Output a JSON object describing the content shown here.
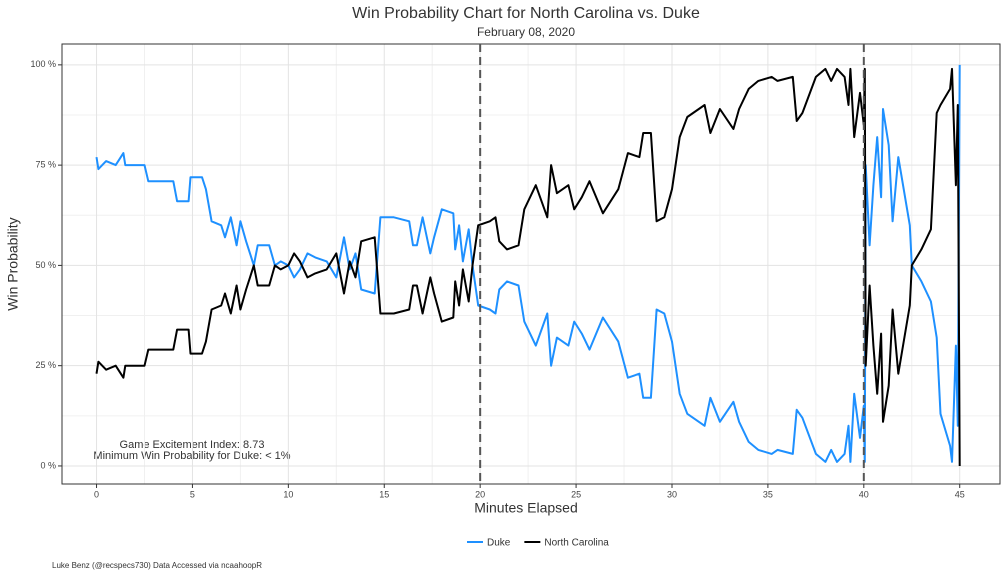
{
  "chart_data": {
    "type": "line",
    "title": "Win Probability Chart for North Carolina vs. Duke",
    "subtitle": "February 08, 2020",
    "x_label": "Minutes Elapsed",
    "y_label": "Win Probability",
    "annotations": [
      "Game Excitement Index: 8.73",
      "Minimum Win Probability for Duke: < 1%"
    ],
    "caption": "Luke Benz (@recspecs730) Data Accessed via ncaahoopR",
    "xlim": [
      -1.8,
      47.1
    ],
    "ylim": [
      -4.5,
      105.2
    ],
    "xticks": [
      0,
      5,
      10,
      15,
      20,
      25,
      30,
      35,
      40,
      45
    ],
    "yticks": [
      {
        "value": 0,
        "label": "0 %"
      },
      {
        "value": 25,
        "label": "25 %"
      },
      {
        "value": 50,
        "label": "50 %"
      },
      {
        "value": 75,
        "label": "75 %"
      },
      {
        "value": 100,
        "label": "100 %"
      }
    ],
    "grid": true,
    "legend": "bottom",
    "vlines": [
      20,
      40
    ],
    "x": [
      0,
      0.1,
      0.5,
      1,
      1.4,
      1.5,
      2,
      2.5,
      2.7,
      3.5,
      4,
      4.2,
      4.8,
      4.9,
      5.5,
      5.7,
      6,
      6.5,
      6.7,
      7,
      7.3,
      7.5,
      7.8,
      8,
      8.2,
      8.4,
      9,
      9.3,
      9.6,
      10,
      10.3,
      10.6,
      11,
      11.4,
      12,
      12.5,
      12.9,
      13.2,
      13.5,
      13.8,
      14.5,
      14.8,
      15.5,
      16.3,
      16.5,
      16.7,
      17,
      17.4,
      17.6,
      18,
      18.6,
      18.7,
      18.9,
      19.1,
      19.4,
      19.6,
      19.9,
      20.5,
      20.8,
      21,
      21.4,
      22,
      22.3,
      22.9,
      23.5,
      23.7,
      24,
      24.6,
      24.9,
      25.3,
      25.7,
      26.4,
      27.2,
      27.7,
      28.3,
      28.5,
      28.9,
      29.2,
      29.6,
      30,
      30.4,
      30.8,
      31.7,
      32,
      32.5,
      33.2,
      33.5,
      34,
      34.5,
      35.2,
      35.5,
      36.3,
      36.5,
      36.8,
      37.5,
      38,
      38.3,
      38.6,
      39,
      39.2,
      39.3,
      39.5,
      39.8,
      40,
      40.05,
      40.1,
      40.3,
      40.5,
      40.7,
      40.9,
      41,
      41.3,
      41.5,
      41.8,
      42.4,
      42.5,
      43,
      43.5,
      43.8,
      44,
      44.5,
      44.6,
      44.8,
      44.9,
      45
    ],
    "series": [
      {
        "name": "Duke",
        "color": "#1e90ff",
        "values": [
          77,
          74,
          76,
          75,
          78,
          75,
          75,
          75,
          71,
          71,
          71,
          66,
          66,
          72,
          72,
          69,
          61,
          60,
          57,
          62,
          55,
          61,
          56,
          53,
          50,
          55,
          55,
          50,
          51,
          50,
          47,
          49,
          53,
          52,
          51,
          47,
          57,
          49,
          53,
          44,
          43,
          62,
          62,
          61,
          55,
          55,
          62,
          53,
          57,
          64,
          63,
          54,
          60,
          51,
          59,
          50,
          40,
          39,
          38,
          44,
          46,
          45,
          36,
          30,
          38,
          25,
          32,
          30,
          36,
          33,
          29,
          37,
          31,
          22,
          23,
          17,
          17,
          39,
          38,
          31,
          18,
          13,
          10,
          17,
          11,
          16,
          11,
          6,
          4,
          3,
          4,
          3,
          14,
          12,
          3,
          1,
          4,
          1,
          3,
          10,
          1,
          18,
          7,
          15,
          1,
          75,
          55,
          70,
          82,
          67,
          89,
          80,
          61,
          77,
          60,
          50,
          46,
          41,
          32,
          13,
          5,
          1,
          30,
          10,
          100
        ]
      },
      {
        "name": "North Carolina",
        "color": "#000000",
        "values": [
          23,
          26,
          24,
          25,
          22,
          25,
          25,
          25,
          29,
          29,
          29,
          34,
          34,
          28,
          28,
          31,
          39,
          40,
          43,
          38,
          45,
          39,
          44,
          47,
          50,
          45,
          45,
          50,
          49,
          50,
          53,
          51,
          47,
          48,
          49,
          53,
          43,
          51,
          47,
          56,
          57,
          38,
          38,
          39,
          45,
          45,
          38,
          47,
          43,
          36,
          37,
          46,
          40,
          49,
          41,
          50,
          60,
          61,
          62,
          56,
          54,
          55,
          64,
          70,
          62,
          75,
          68,
          70,
          64,
          67,
          71,
          63,
          69,
          78,
          77,
          83,
          83,
          61,
          62,
          69,
          82,
          87,
          90,
          83,
          89,
          84,
          89,
          94,
          96,
          97,
          96,
          97,
          86,
          88,
          97,
          99,
          96,
          99,
          97,
          90,
          99,
          82,
          93,
          85,
          99,
          25,
          45,
          30,
          18,
          33,
          11,
          20,
          39,
          23,
          40,
          50,
          54,
          59,
          88,
          90,
          94,
          99,
          70,
          90,
          0
        ]
      }
    ]
  }
}
